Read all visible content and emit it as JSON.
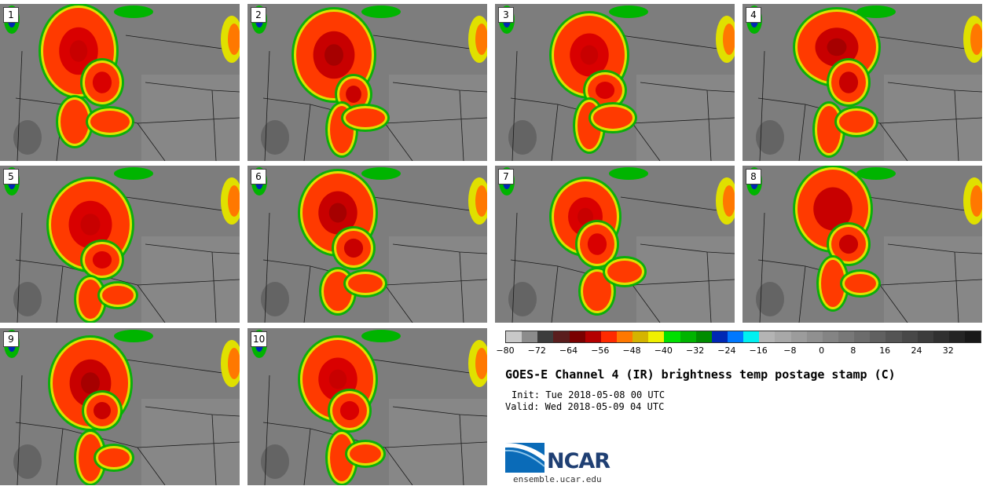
{
  "panels": [
    {
      "label": "1",
      "colors": [
        "#ff3a00",
        "#d90000",
        "#c80000"
      ]
    },
    {
      "label": "2",
      "colors": [
        "#ff3a00",
        "#c80000",
        "#a60000"
      ]
    },
    {
      "label": "3",
      "colors": [
        "#ff3a00",
        "#d90000",
        "#c80000"
      ]
    },
    {
      "label": "4",
      "colors": [
        "#ff3a00",
        "#c80000",
        "#a60000"
      ]
    },
    {
      "label": "5",
      "colors": [
        "#ff3a00",
        "#d90000",
        "#c80000"
      ]
    },
    {
      "label": "6",
      "colors": [
        "#ff3a00",
        "#c80000",
        "#a60000"
      ]
    },
    {
      "label": "7",
      "colors": [
        "#ff3a00",
        "#d90000",
        "#c80000"
      ]
    },
    {
      "label": "8",
      "colors": [
        "#ff3a00",
        "#c80000",
        "#c80000"
      ]
    },
    {
      "label": "9",
      "colors": [
        "#ff3a00",
        "#c80000",
        "#a60000"
      ]
    },
    {
      "label": "10",
      "colors": [
        "#ff3a00",
        "#d90000",
        "#c80000"
      ]
    }
  ],
  "colorbar": {
    "colors": [
      "#c8c8c8",
      "#8c8c8c",
      "#3c3c3c",
      "#5a1e1e",
      "#7a0000",
      "#b40000",
      "#ff2a00",
      "#ff7800",
      "#d4b400",
      "#f0f000",
      "#00e000",
      "#00b400",
      "#008c00",
      "#0028b4",
      "#0078ff",
      "#00f0f0",
      "#b4b4b4",
      "#a8a8a8",
      "#9c9c9c",
      "#909090",
      "#848484",
      "#787878",
      "#6c6c6c",
      "#606060",
      "#545454",
      "#484848",
      "#3c3c3c",
      "#303030",
      "#242424",
      "#181818"
    ],
    "ticks": [
      "−80",
      "−72",
      "−64",
      "−56",
      "−48",
      "−40",
      "−32",
      "−24",
      "−16",
      "−8",
      "0",
      "8",
      "16",
      "24",
      "32"
    ]
  },
  "title": "GOES-E Channel 4 (IR) brightness temp postage stamp (C)",
  "init": "Init: Tue 2018-05-08 00 UTC",
  "valid": "Valid: Wed 2018-05-09 04 UTC",
  "logo": {
    "text": "NCAR",
    "icon": "ncar-swoosh-logo"
  },
  "site": "ensemble.ucar.edu"
}
